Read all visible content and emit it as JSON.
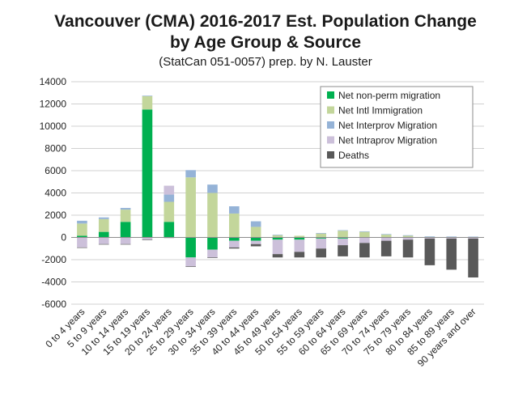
{
  "chart_data": {
    "type": "bar",
    "stacked": true,
    "title_line1": "Vancouver (CMA) 2016-2017 Est. Population Change",
    "title_line2": "by Age Group & Source",
    "subtitle": "(StatCan 051-0057) prep. by N. Lauster",
    "xlabel": "",
    "ylabel": "",
    "ylim": [
      -6000,
      14000
    ],
    "yticks": [
      -6000,
      -4000,
      -2000,
      0,
      2000,
      4000,
      6000,
      8000,
      10000,
      12000,
      14000
    ],
    "grid": true,
    "legend_position": "top-right",
    "categories": [
      "0 to 4 years",
      "5 to 9 years",
      "10 to 14 years",
      "15 to 19 years",
      "20 to 24 years",
      "25 to 29 years",
      "30 to 34 years",
      "35 to 39 years",
      "40 to 44 years",
      "45 to 49 years",
      "50 to 54 years",
      "55 to 59 years",
      "60 to 64 years",
      "65 to 69 years",
      "70 to 74 years",
      "75 to 79 years",
      "80 to 84 years",
      "85 to 89 years",
      "90 years and over"
    ],
    "series": [
      {
        "name": "Net non-perm migration",
        "color": "#00b050",
        "values": [
          150,
          500,
          1400,
          11500,
          1400,
          -1800,
          -1100,
          -300,
          -300,
          -200,
          -200,
          -100,
          -100,
          0,
          0,
          0,
          0,
          0,
          0
        ]
      },
      {
        "name": "Net Intl Immigration",
        "color": "#c3d69b",
        "values": [
          1100,
          1150,
          1100,
          1200,
          1800,
          5400,
          4000,
          2150,
          950,
          200,
          150,
          350,
          600,
          500,
          250,
          150,
          50,
          30,
          20
        ]
      },
      {
        "name": "Net Interprov Migration",
        "color": "#95b3d7",
        "values": [
          250,
          150,
          150,
          50,
          650,
          650,
          750,
          650,
          500,
          50,
          0,
          50,
          50,
          50,
          50,
          50,
          50,
          50,
          50
        ]
      },
      {
        "name": "Net Intraprov Migration",
        "color": "#ccc0da",
        "values": [
          -900,
          -600,
          -600,
          -200,
          800,
          -800,
          -700,
          -600,
          -300,
          -1300,
          -1100,
          -900,
          -600,
          -500,
          -300,
          -200,
          -100,
          -100,
          -100
        ]
      },
      {
        "name": "Deaths",
        "color": "#595959",
        "values": [
          -10,
          -10,
          -10,
          -20,
          -50,
          -50,
          -50,
          -100,
          -200,
          -300,
          -500,
          -800,
          -1000,
          -1300,
          -1400,
          -1600,
          -2400,
          -2800,
          -3500
        ]
      }
    ]
  }
}
